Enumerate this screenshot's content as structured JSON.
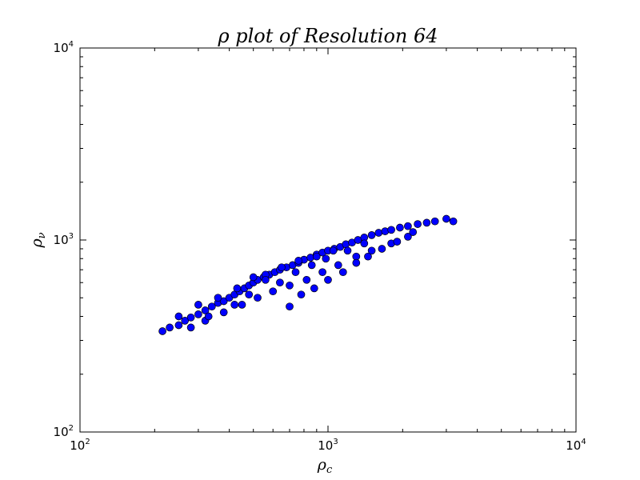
{
  "chart_data": {
    "type": "scatter",
    "title": "ρ plot of Resolution 64",
    "xlabel": "ρ",
    "xlabel_sub": "c",
    "ylabel": "ρ",
    "ylabel_sub": "ν",
    "xscale": "log",
    "yscale": "log",
    "xlim": [
      100,
      10000
    ],
    "ylim": [
      100,
      10000
    ],
    "grid": false,
    "xticks": [
      {
        "base": "10",
        "exp": "2"
      },
      {
        "base": "10",
        "exp": "3"
      },
      {
        "base": "10",
        "exp": "4"
      }
    ],
    "yticks": [
      {
        "base": "10",
        "exp": "2"
      },
      {
        "base": "10",
        "exp": "3"
      },
      {
        "base": "10",
        "exp": "4"
      }
    ],
    "marker_color": "#0000ff",
    "marker_edge": "#000000",
    "series": [
      {
        "points": [
          [
            215,
            335
          ],
          [
            230,
            350
          ],
          [
            250,
            360
          ],
          [
            265,
            380
          ],
          [
            280,
            395
          ],
          [
            300,
            410
          ],
          [
            320,
            430
          ],
          [
            340,
            450
          ],
          [
            360,
            470
          ],
          [
            380,
            480
          ],
          [
            400,
            500
          ],
          [
            420,
            520
          ],
          [
            440,
            540
          ],
          [
            460,
            560
          ],
          [
            480,
            580
          ],
          [
            500,
            600
          ],
          [
            520,
            620
          ],
          [
            550,
            640
          ],
          [
            580,
            660
          ],
          [
            610,
            680
          ],
          [
            640,
            700
          ],
          [
            680,
            720
          ],
          [
            720,
            740
          ],
          [
            760,
            760
          ],
          [
            800,
            790
          ],
          [
            850,
            810
          ],
          [
            900,
            840
          ],
          [
            950,
            860
          ],
          [
            1000,
            880
          ],
          [
            1060,
            900
          ],
          [
            1120,
            920
          ],
          [
            1180,
            950
          ],
          [
            1250,
            970
          ],
          [
            1320,
            1000
          ],
          [
            1400,
            1030
          ],
          [
            1500,
            1060
          ],
          [
            1600,
            1090
          ],
          [
            1700,
            1110
          ],
          [
            1800,
            1130
          ],
          [
            1950,
            1160
          ],
          [
            2100,
            1180
          ],
          [
            2300,
            1210
          ],
          [
            2500,
            1230
          ],
          [
            2700,
            1250
          ],
          [
            3000,
            1290
          ],
          [
            3200,
            1250
          ],
          [
            280,
            350
          ],
          [
            320,
            380
          ],
          [
            380,
            420
          ],
          [
            450,
            460
          ],
          [
            520,
            500
          ],
          [
            600,
            540
          ],
          [
            700,
            580
          ],
          [
            820,
            620
          ],
          [
            950,
            680
          ],
          [
            1100,
            740
          ],
          [
            1300,
            820
          ],
          [
            1500,
            880
          ],
          [
            1800,
            960
          ],
          [
            2100,
            1040
          ],
          [
            250,
            400
          ],
          [
            300,
            460
          ],
          [
            360,
            500
          ],
          [
            430,
            560
          ],
          [
            500,
            640
          ],
          [
            560,
            660
          ],
          [
            650,
            720
          ],
          [
            760,
            780
          ],
          [
            900,
            820
          ],
          [
            1050,
            880
          ],
          [
            700,
            450
          ],
          [
            780,
            520
          ],
          [
            880,
            560
          ],
          [
            1000,
            620
          ],
          [
            1150,
            680
          ],
          [
            1300,
            760
          ],
          [
            1450,
            820
          ],
          [
            1650,
            900
          ],
          [
            1900,
            980
          ],
          [
            2200,
            1100
          ],
          [
            560,
            620
          ],
          [
            480,
            520
          ],
          [
            420,
            460
          ],
          [
            330,
            400
          ],
          [
            640,
            600
          ],
          [
            740,
            680
          ],
          [
            860,
            740
          ],
          [
            980,
            800
          ],
          [
            1200,
            880
          ],
          [
            1400,
            960
          ]
        ]
      }
    ]
  }
}
